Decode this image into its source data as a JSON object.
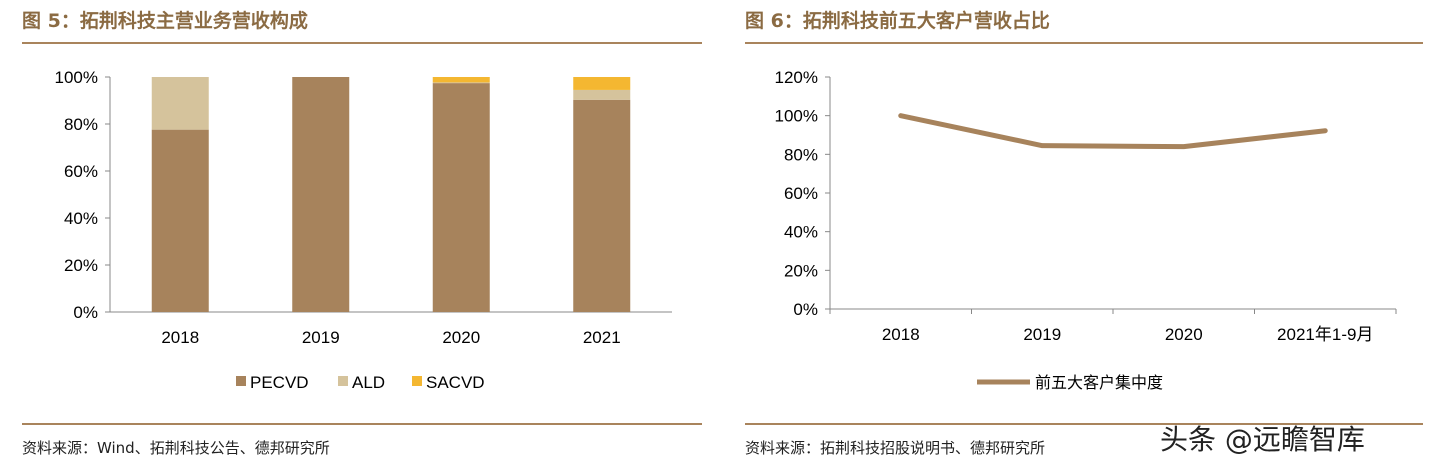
{
  "left": {
    "title": "图 5：拓荆科技主营业务营收构成",
    "source": "资料来源：Wind、拓荆科技公告、德邦研究所"
  },
  "right": {
    "title": "图 6：拓荆科技前五大客户营收占比",
    "source": "资料来源：拓荆科技招股说明书、德邦研究所"
  },
  "watermark": "头条 @远瞻智库",
  "chart_data": [
    {
      "type": "bar",
      "stacked": true,
      "categories": [
        "2018",
        "2019",
        "2020",
        "2021"
      ],
      "series": [
        {
          "name": "PECVD",
          "color": "#a7835c",
          "values": [
            77.6,
            100,
            97.4,
            90.3
          ]
        },
        {
          "name": "ALD",
          "color": "#d5c39c",
          "values": [
            22.4,
            0,
            0.3,
            4.2
          ]
        },
        {
          "name": "SACVD",
          "color": "#f4b731",
          "values": [
            0,
            0,
            2.3,
            5.5
          ]
        }
      ],
      "yticks": [
        "0%",
        "20%",
        "40%",
        "60%",
        "80%",
        "100%"
      ],
      "ylim": [
        0,
        100
      ],
      "legend": "bottom",
      "grid": false
    },
    {
      "type": "line",
      "categories": [
        "2018",
        "2019",
        "2020",
        "2021年1-9月"
      ],
      "series": [
        {
          "name": "前五大客户集中度",
          "color": "#a7835c",
          "values": [
            100,
            84.5,
            84.0,
            92.2
          ]
        }
      ],
      "yticks": [
        "0%",
        "20%",
        "40%",
        "60%",
        "80%",
        "100%",
        "120%"
      ],
      "ylim": [
        0,
        120
      ],
      "legend": "bottom",
      "grid": false
    }
  ]
}
